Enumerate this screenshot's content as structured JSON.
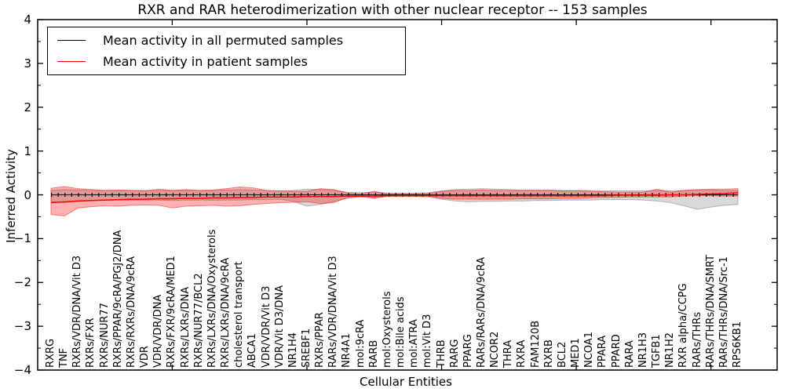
{
  "title": "RXR and RAR heterodimerization with other nuclear receptor -- 153 samples",
  "legend": {
    "items": [
      {
        "label": "Mean activity in all permuted samples",
        "color": "#000000"
      },
      {
        "label": "Mean activity in patient samples",
        "color": "#ff0000"
      }
    ],
    "position": "upper left"
  },
  "chart_data": {
    "type": "line",
    "title": "RXR and RAR heterodimerization with other nuclear receptor -- 153 samples",
    "xlabel": "Cellular Entities",
    "ylabel": "Inferred Activity",
    "ylim": [
      -4,
      4
    ],
    "ytick_values": [
      4,
      3,
      2,
      1,
      0,
      -1,
      -2,
      -3,
      -4
    ],
    "ytick_labels": [
      "4",
      "3",
      "2",
      "1",
      "0",
      "−1",
      "−2",
      "−3",
      "−4"
    ],
    "y_minor_tick_step": 0.5,
    "x_major_tick_every": 10,
    "grid": false,
    "legend_position": "upper left",
    "categories": [
      "RXRG",
      "TNF",
      "RXRs/VDR/DNA/Vit D3",
      "RXRs/FXR",
      "RXRs/NUR77",
      "RXRs/PPAR/9cRA/PGJ2/DNA",
      "RXRs/RXRs/DNA/9cRA",
      "VDR",
      "VDR/VDR/DNA",
      "RXRs/FXR/9cRA/MED1",
      "RXRs/LXRs/DNA",
      "RXRs/NUR77/BCL2",
      "RXRs/LXRs/DNA/Oxysterols",
      "RXRs/LXRs/DNA/9cRA",
      "cholesterol transport",
      "ABCA1",
      "VDR/VDR/Vit D3",
      "VDR/Vit D3/DNA",
      "NR1H4",
      "SREBF1",
      "RXRs/PPAR",
      "RARs/VDR/DNA/Vit D3",
      "NR4A1",
      "mol:9cRA",
      "RARB",
      "mol:Oxysterols",
      "mol:Bile acids",
      "mol:ATRA",
      "mol:Vit D3",
      "THRB",
      "RARG",
      "PPARG",
      "RARs/RARs/DNA/9cRA",
      "NCOR2",
      "THRA",
      "RXRA",
      "FAM120B",
      "RXRB",
      "BCL2",
      "MED1",
      "NCOA1",
      "PPARA",
      "PPARD",
      "RARA",
      "NR1H3",
      "TGFB1",
      "NR1H2",
      "RXR alpha/CCPG",
      "RARs/THRs",
      "RARs/THRs/DNA/SMRT",
      "RARs/THRs/DNA/Src-1",
      "RPS6KB1"
    ],
    "series": [
      {
        "name": "Mean activity in all permuted samples",
        "color": "#000000",
        "band_color": "rgba(0,0,0,0.15)",
        "band_edge_color": "rgba(0,0,0,0.25)",
        "values": [
          0,
          0,
          0,
          0,
          0,
          0,
          0,
          0,
          0,
          0,
          0,
          0,
          0,
          0,
          0,
          0,
          0,
          0,
          0,
          0,
          0,
          0,
          0,
          0,
          0,
          0,
          0,
          0,
          0,
          0,
          0,
          0,
          0,
          0,
          0,
          0,
          0,
          0,
          0,
          0,
          0,
          0,
          0,
          0,
          0,
          0,
          0,
          0,
          0,
          0,
          0,
          0
        ],
        "band_upper": [
          0.1,
          0.12,
          0.11,
          0.1,
          0.1,
          0.1,
          0.1,
          0.1,
          0.1,
          0.1,
          0.1,
          0.1,
          0.1,
          0.11,
          0.12,
          0.11,
          0.1,
          0.09,
          0.1,
          0.13,
          0.12,
          0.1,
          0.06,
          0.05,
          0.06,
          0.04,
          0.04,
          0.04,
          0.05,
          0.09,
          0.12,
          0.13,
          0.14,
          0.13,
          0.12,
          0.11,
          0.11,
          0.11,
          0.1,
          0.1,
          0.1,
          0.09,
          0.09,
          0.09,
          0.09,
          0.1,
          0.09,
          0.1,
          0.11,
          0.11,
          0.1,
          0.1
        ],
        "band_lower": [
          -0.15,
          -0.18,
          -0.14,
          -0.13,
          -0.12,
          -0.12,
          -0.12,
          -0.12,
          -0.12,
          -0.13,
          -0.12,
          -0.12,
          -0.12,
          -0.12,
          -0.12,
          -0.11,
          -0.11,
          -0.1,
          -0.15,
          -0.26,
          -0.22,
          -0.15,
          -0.08,
          -0.05,
          -0.07,
          -0.04,
          -0.04,
          -0.04,
          -0.05,
          -0.1,
          -0.14,
          -0.16,
          -0.15,
          -0.15,
          -0.14,
          -0.14,
          -0.13,
          -0.13,
          -0.12,
          -0.12,
          -0.12,
          -0.11,
          -0.11,
          -0.11,
          -0.12,
          -0.14,
          -0.18,
          -0.25,
          -0.33,
          -0.28,
          -0.24,
          -0.22
        ]
      },
      {
        "name": "Mean activity in patient samples",
        "color": "#ff0000",
        "band_color": "rgba(255,0,0,0.30)",
        "band_edge_color": "rgba(255,0,0,0.45)",
        "values": [
          -0.18,
          -0.16,
          -0.14,
          -0.13,
          -0.12,
          -0.11,
          -0.1,
          -0.1,
          -0.09,
          -0.09,
          -0.08,
          -0.08,
          -0.07,
          -0.07,
          -0.06,
          -0.06,
          -0.05,
          -0.05,
          -0.05,
          -0.04,
          -0.04,
          -0.04,
          -0.03,
          -0.03,
          -0.03,
          -0.02,
          -0.02,
          -0.02,
          -0.02,
          -0.02,
          -0.02,
          -0.02,
          -0.02,
          -0.02,
          -0.02,
          -0.02,
          -0.02,
          -0.02,
          -0.02,
          -0.02,
          -0.02,
          -0.02,
          -0.01,
          -0.01,
          -0.01,
          -0.01,
          0.0,
          0.0,
          0.01,
          0.02,
          0.03,
          0.05
        ],
        "band_upper": [
          0.15,
          0.19,
          0.14,
          0.12,
          0.1,
          0.11,
          0.1,
          0.09,
          0.13,
          0.1,
          0.12,
          0.1,
          0.11,
          0.14,
          0.18,
          0.16,
          0.1,
          0.09,
          0.08,
          0.08,
          0.14,
          0.12,
          0.04,
          0.02,
          0.08,
          0.02,
          0.02,
          0.02,
          0.03,
          0.08,
          0.1,
          0.1,
          0.11,
          0.1,
          0.1,
          0.1,
          0.1,
          0.1,
          0.09,
          0.09,
          0.08,
          0.07,
          0.06,
          0.06,
          0.06,
          0.13,
          0.06,
          0.1,
          0.12,
          0.13,
          0.13,
          0.14
        ],
        "band_lower": [
          -0.45,
          -0.48,
          -0.3,
          -0.27,
          -0.25,
          -0.26,
          -0.24,
          -0.23,
          -0.24,
          -0.3,
          -0.26,
          -0.25,
          -0.24,
          -0.26,
          -0.25,
          -0.22,
          -0.2,
          -0.18,
          -0.17,
          -0.16,
          -0.2,
          -0.18,
          -0.06,
          -0.03,
          -0.08,
          -0.02,
          -0.02,
          -0.02,
          -0.03,
          -0.08,
          -0.1,
          -0.1,
          -0.1,
          -0.1,
          -0.1,
          -0.09,
          -0.09,
          -0.09,
          -0.08,
          -0.08,
          -0.07,
          -0.06,
          -0.06,
          -0.05,
          -0.05,
          -0.05,
          -0.05,
          -0.03,
          -0.02,
          -0.02,
          -0.03,
          -0.03
        ]
      }
    ]
  }
}
